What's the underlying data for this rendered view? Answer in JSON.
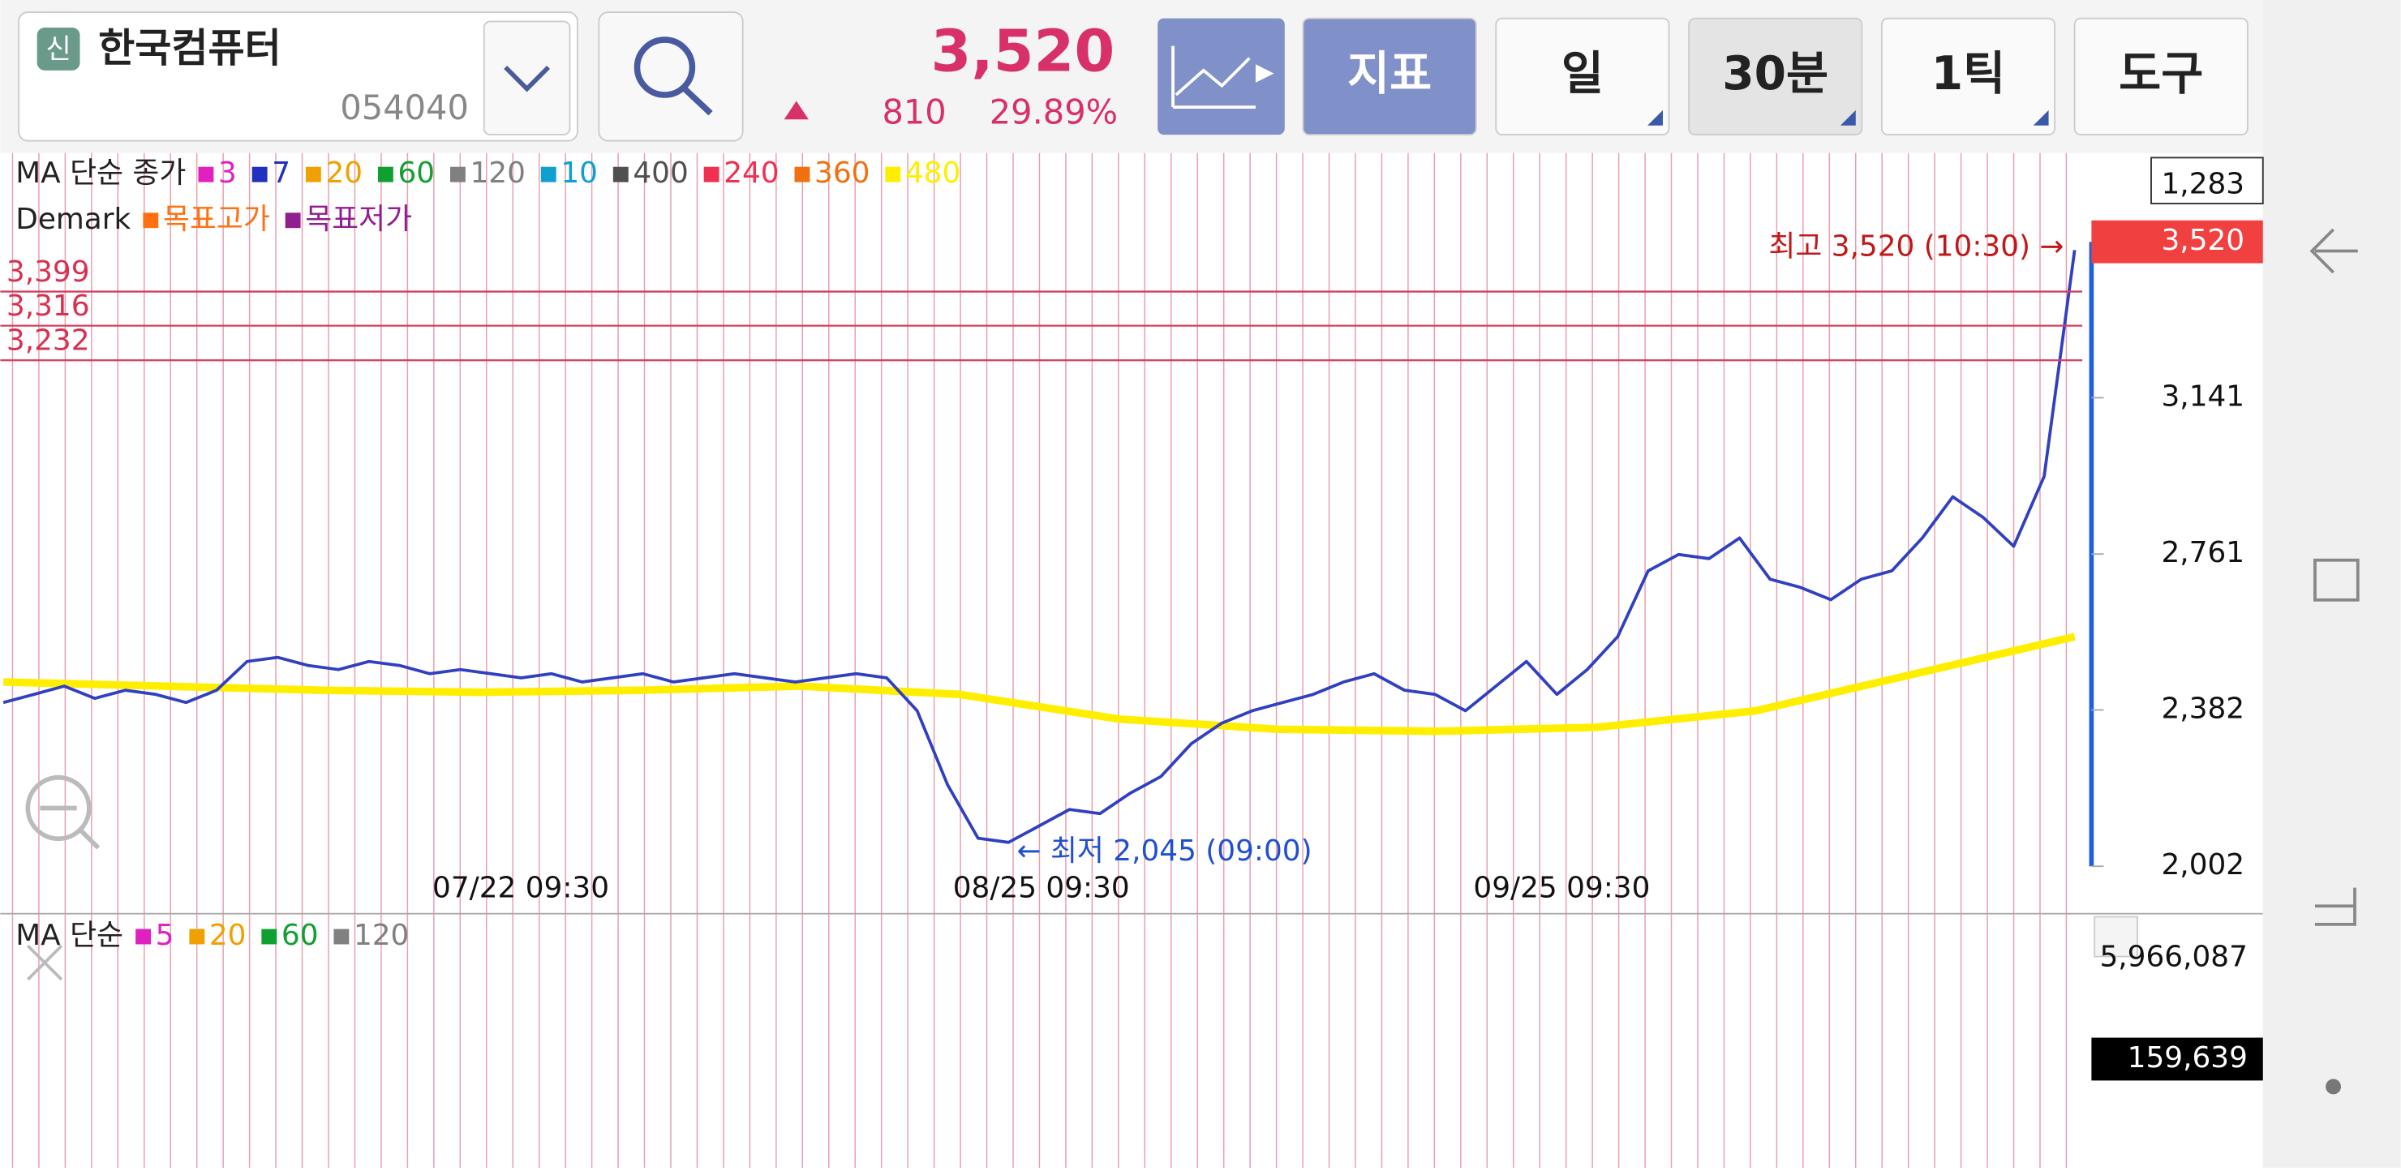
{
  "header": {
    "badge": "신",
    "name": "한국컴퓨터",
    "code": "054040",
    "price": "3,520",
    "change": "810",
    "change_pct": "29.89%"
  },
  "buttons": [
    "지표",
    "일",
    "30분",
    "1틱",
    "도구"
  ],
  "chart_data": {
    "type": "line",
    "ma_legend": {
      "label": "MA 단순 종가",
      "items": [
        {
          "name": "3",
          "color": "#e020c0"
        },
        {
          "name": "7",
          "color": "#2030c0"
        },
        {
          "name": "20",
          "color": "#f0a000"
        },
        {
          "name": "60",
          "color": "#10a030"
        },
        {
          "name": "120",
          "color": "#808080"
        },
        {
          "name": "10",
          "color": "#10a0d0"
        },
        {
          "name": "400",
          "color": "#505050"
        },
        {
          "name": "240",
          "color": "#f03050"
        },
        {
          "name": "360",
          "color": "#f07010"
        },
        {
          "name": "480",
          "color": "#ffee00"
        }
      ]
    },
    "demark_legend": {
      "label": "Demark",
      "items": [
        {
          "name": "목표고가",
          "color": "#ff7010"
        },
        {
          "name": "목표저가",
          "color": "#902090"
        }
      ]
    },
    "top_label": "1,283",
    "ylim": [
      2002,
      3520
    ],
    "yticks": [
      {
        "value": 3141,
        "label": "3,141"
      },
      {
        "value": 2761,
        "label": "2,761"
      },
      {
        "value": 2382,
        "label": "2,382"
      },
      {
        "value": 2002,
        "label": "2,002"
      }
    ],
    "levels": [
      {
        "value": 3399,
        "label": "3,399"
      },
      {
        "value": 3316,
        "label": "3,316"
      },
      {
        "value": 3232,
        "label": "3,232"
      }
    ],
    "x_labels": [
      "07/22 09:30",
      "08/25 09:30",
      "09/25 09:30"
    ],
    "high_note": "최고 3,520 (10:30) →",
    "low_note": "← 최저 2,045 (09:00)",
    "series": [
      {
        "name": "종가",
        "color": "#3040c0",
        "values": [
          2400,
          2420,
          2440,
          2410,
          2430,
          2420,
          2400,
          2430,
          2500,
          2510,
          2490,
          2480,
          2500,
          2490,
          2470,
          2480,
          2470,
          2460,
          2470,
          2450,
          2460,
          2470,
          2450,
          2460,
          2470,
          2460,
          2450,
          2460,
          2470,
          2460,
          2380,
          2200,
          2070,
          2060,
          2100,
          2140,
          2130,
          2180,
          2220,
          2300,
          2350,
          2380,
          2400,
          2420,
          2450,
          2470,
          2430,
          2420,
          2380,
          2440,
          2500,
          2420,
          2480,
          2560,
          2720,
          2760,
          2750,
          2800,
          2700,
          2680,
          2650,
          2700,
          2720,
          2800,
          2900,
          2850,
          2780,
          2950,
          3500
        ]
      },
      {
        "name": "480",
        "color": "#ffee00",
        "values": [
          2450,
          2440,
          2430,
          2425,
          2430,
          2440,
          2420,
          2360,
          2335,
          2330,
          2340,
          2380,
          2470,
          2560
        ]
      }
    ],
    "volume": {
      "legend_label": "MA 단순",
      "items": [
        {
          "name": "5",
          "color": "#e020c0"
        },
        {
          "name": "20",
          "color": "#f0a000"
        },
        {
          "name": "60",
          "color": "#10a030"
        },
        {
          "name": "120",
          "color": "#808080"
        }
      ],
      "max_label": "5,966,087",
      "current_label": "159,639"
    }
  }
}
